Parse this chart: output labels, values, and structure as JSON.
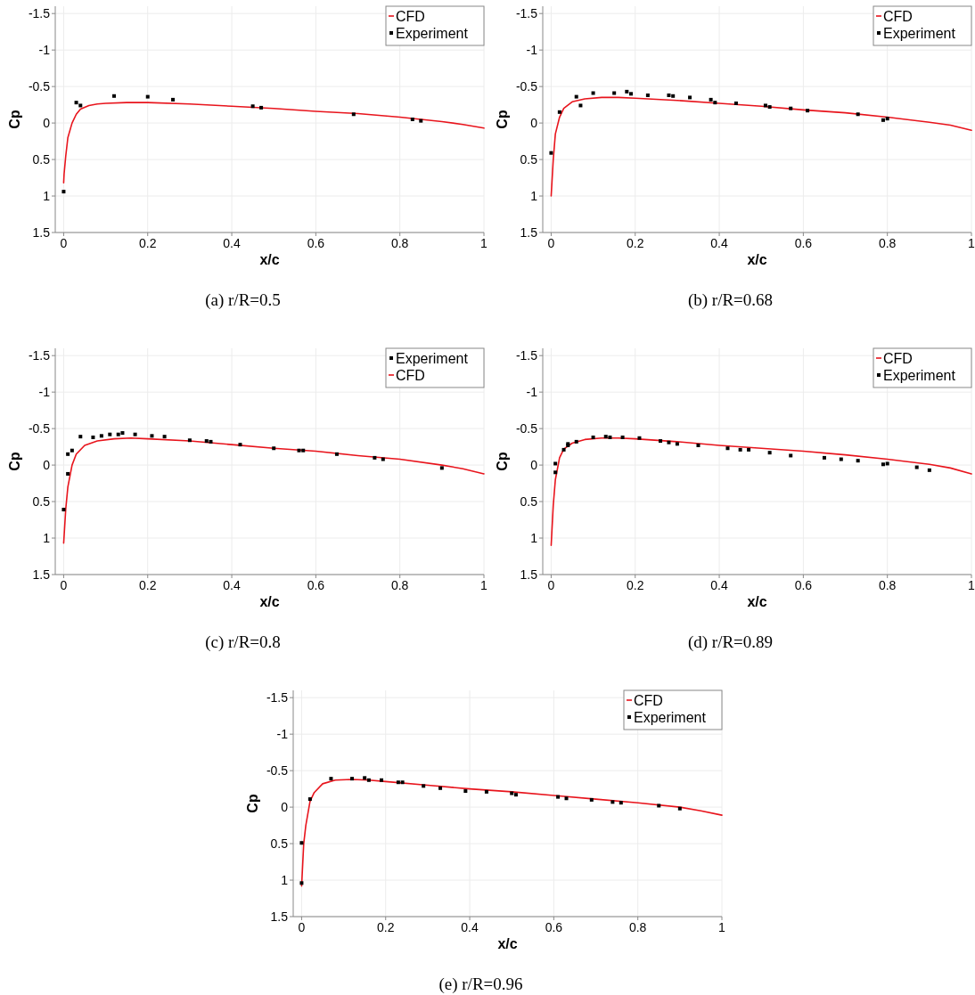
{
  "chart_data": [
    {
      "type": "line",
      "title": "(a) r/R=0.5",
      "xlabel": "x/c",
      "ylabel": "Cp",
      "xlim": [
        -0.02,
        1
      ],
      "ylim": [
        1.5,
        -1.6
      ],
      "xticks": [
        0,
        0.2,
        0.4,
        0.6,
        0.8,
        1
      ],
      "yticks": [
        -1.5,
        -1,
        -0.5,
        0,
        0.5,
        1,
        1.5
      ],
      "grid": true,
      "legend": "top right",
      "series": [
        {
          "name": "CFD",
          "color": "#e8141c",
          "marker": "none",
          "line_style": "solid",
          "x": [
            0,
            0.001,
            0.005,
            0.01,
            0.02,
            0.03,
            0.04,
            0.06,
            0.08,
            0.1,
            0.15,
            0.2,
            0.3,
            0.4,
            0.5,
            0.6,
            0.7,
            0.8,
            0.9,
            0.95,
            1
          ],
          "values": [
            0.82,
            0.7,
            0.45,
            0.2,
            0,
            -0.12,
            -0.19,
            -0.24,
            -0.26,
            -0.27,
            -0.28,
            -0.28,
            -0.26,
            -0.23,
            -0.2,
            -0.16,
            -0.13,
            -0.08,
            -0.02,
            0.02,
            0.07
          ]
        },
        {
          "name": "Experiment",
          "type": "scatter",
          "color": "#000000",
          "marker": "square",
          "x": [
            0,
            0.03,
            0.04,
            0.12,
            0.2,
            0.26,
            0.45,
            0.47,
            0.69,
            0.83,
            0.85
          ],
          "values": [
            0.94,
            -0.28,
            -0.24,
            -0.37,
            -0.36,
            -0.32,
            -0.23,
            -0.21,
            -0.12,
            -0.05,
            -0.03
          ]
        }
      ]
    },
    {
      "type": "line",
      "title": "(b) r/R=0.68",
      "xlabel": "x/c",
      "ylabel": "Cp",
      "xlim": [
        -0.02,
        1
      ],
      "ylim": [
        1.5,
        -1.6
      ],
      "xticks": [
        0,
        0.2,
        0.4,
        0.6,
        0.8,
        1
      ],
      "yticks": [
        -1.5,
        -1,
        -0.5,
        0,
        0.5,
        1,
        1.5
      ],
      "grid": true,
      "legend": "top right",
      "series": [
        {
          "name": "CFD",
          "color": "#e8141c",
          "marker": "none",
          "line_style": "solid",
          "x": [
            0,
            0.005,
            0.01,
            0.02,
            0.03,
            0.05,
            0.08,
            0.12,
            0.16,
            0.2,
            0.3,
            0.4,
            0.5,
            0.6,
            0.7,
            0.8,
            0.9,
            0.95,
            1
          ],
          "values": [
            1.0,
            0.5,
            0.15,
            -0.08,
            -0.2,
            -0.29,
            -0.33,
            -0.35,
            -0.35,
            -0.34,
            -0.31,
            -0.27,
            -0.23,
            -0.18,
            -0.14,
            -0.08,
            -0.01,
            0.03,
            0.1
          ]
        },
        {
          "name": "Experiment",
          "type": "scatter",
          "color": "#000000",
          "marker": "square",
          "x": [
            0,
            0.02,
            0.06,
            0.07,
            0.1,
            0.15,
            0.18,
            0.19,
            0.23,
            0.28,
            0.29,
            0.33,
            0.38,
            0.39,
            0.44,
            0.51,
            0.52,
            0.57,
            0.61,
            0.73,
            0.79,
            0.8
          ],
          "values": [
            0.41,
            -0.15,
            -0.36,
            -0.24,
            -0.41,
            -0.41,
            -0.43,
            -0.4,
            -0.38,
            -0.38,
            -0.37,
            -0.35,
            -0.32,
            -0.28,
            -0.27,
            -0.24,
            -0.22,
            -0.2,
            -0.17,
            -0.12,
            -0.04,
            -0.06
          ]
        }
      ]
    },
    {
      "type": "line",
      "title": "(c) r/R=0.8",
      "xlabel": "x/c",
      "ylabel": "Cp",
      "xlim": [
        -0.02,
        1
      ],
      "ylim": [
        1.5,
        -1.6
      ],
      "xticks": [
        0,
        0.2,
        0.4,
        0.6,
        0.8,
        1
      ],
      "yticks": [
        -1.5,
        -1,
        -0.5,
        0,
        0.5,
        1,
        1.5
      ],
      "grid": true,
      "legend": "top right",
      "series": [
        {
          "name": "Experiment",
          "type": "scatter",
          "color": "#000000",
          "marker": "square",
          "x": [
            0,
            0.01,
            0.01,
            0.02,
            0.04,
            0.07,
            0.09,
            0.11,
            0.13,
            0.14,
            0.17,
            0.21,
            0.24,
            0.3,
            0.34,
            0.35,
            0.42,
            0.5,
            0.56,
            0.57,
            0.65,
            0.74,
            0.76,
            0.9
          ],
          "values": [
            0.61,
            0.12,
            -0.15,
            -0.2,
            -0.39,
            -0.38,
            -0.4,
            -0.42,
            -0.42,
            -0.44,
            -0.42,
            -0.4,
            -0.39,
            -0.34,
            -0.33,
            -0.32,
            -0.28,
            -0.23,
            -0.2,
            -0.2,
            -0.15,
            -0.1,
            -0.08,
            0.04
          ]
        },
        {
          "name": "CFD",
          "color": "#e8141c",
          "marker": "none",
          "line_style": "solid",
          "x": [
            0,
            0.005,
            0.01,
            0.02,
            0.03,
            0.05,
            0.08,
            0.12,
            0.16,
            0.2,
            0.3,
            0.4,
            0.5,
            0.6,
            0.7,
            0.8,
            0.9,
            0.95,
            1
          ],
          "values": [
            1.07,
            0.6,
            0.3,
            0,
            -0.15,
            -0.27,
            -0.33,
            -0.36,
            -0.37,
            -0.36,
            -0.33,
            -0.28,
            -0.23,
            -0.19,
            -0.13,
            -0.08,
            0,
            0.05,
            0.12
          ]
        }
      ]
    },
    {
      "type": "line",
      "title": "(d) r/R=0.89",
      "xlabel": "x/c",
      "ylabel": "Cp",
      "xlim": [
        -0.02,
        1
      ],
      "ylim": [
        1.5,
        -1.6
      ],
      "xticks": [
        0,
        0.2,
        0.4,
        0.6,
        0.8,
        1
      ],
      "yticks": [
        -1.5,
        -1,
        -0.5,
        0,
        0.5,
        1,
        1.5
      ],
      "grid": true,
      "legend": "top right",
      "series": [
        {
          "name": "CFD",
          "color": "#e8141c",
          "marker": "none",
          "line_style": "solid",
          "x": [
            0,
            0.005,
            0.01,
            0.02,
            0.03,
            0.05,
            0.08,
            0.12,
            0.16,
            0.2,
            0.3,
            0.4,
            0.5,
            0.6,
            0.7,
            0.8,
            0.9,
            0.95,
            1
          ],
          "values": [
            1.1,
            0.55,
            0.2,
            -0.1,
            -0.22,
            -0.3,
            -0.35,
            -0.37,
            -0.37,
            -0.36,
            -0.32,
            -0.27,
            -0.23,
            -0.19,
            -0.14,
            -0.08,
            -0.01,
            0.04,
            0.12
          ]
        },
        {
          "name": "Experiment",
          "type": "scatter",
          "color": "#000000",
          "marker": "square",
          "x": [
            0.01,
            0.01,
            0.03,
            0.04,
            0.04,
            0.06,
            0.1,
            0.13,
            0.14,
            0.17,
            0.21,
            0.26,
            0.28,
            0.3,
            0.35,
            0.42,
            0.45,
            0.47,
            0.52,
            0.57,
            0.65,
            0.69,
            0.73,
            0.79,
            0.8,
            0.87,
            0.9
          ],
          "values": [
            -0.02,
            0.1,
            -0.21,
            -0.27,
            -0.29,
            -0.32,
            -0.38,
            -0.39,
            -0.38,
            -0.38,
            -0.37,
            -0.33,
            -0.31,
            -0.29,
            -0.27,
            -0.23,
            -0.21,
            -0.21,
            -0.17,
            -0.13,
            -0.1,
            -0.08,
            -0.06,
            -0.01,
            -0.02,
            0.03,
            0.07
          ]
        }
      ]
    },
    {
      "type": "line",
      "title": "(e) r/R=0.96",
      "xlabel": "x/c",
      "ylabel": "Cp",
      "xlim": [
        -0.02,
        1
      ],
      "ylim": [
        1.5,
        -1.6
      ],
      "xticks": [
        0,
        0.2,
        0.4,
        0.6,
        0.8,
        1
      ],
      "yticks": [
        -1.5,
        -1,
        -0.5,
        0,
        0.5,
        1,
        1.5
      ],
      "grid": true,
      "legend": "top right",
      "series": [
        {
          "name": "CFD",
          "color": "#e8141c",
          "marker": "none",
          "line_style": "solid",
          "x": [
            0,
            0.005,
            0.01,
            0.02,
            0.03,
            0.05,
            0.08,
            0.12,
            0.16,
            0.2,
            0.3,
            0.4,
            0.5,
            0.6,
            0.7,
            0.8,
            0.9,
            0.95,
            1
          ],
          "values": [
            1.08,
            0.5,
            0.25,
            -0.08,
            -0.2,
            -0.32,
            -0.37,
            -0.38,
            -0.37,
            -0.35,
            -0.3,
            -0.25,
            -0.21,
            -0.16,
            -0.11,
            -0.06,
            0,
            0.05,
            0.11
          ]
        },
        {
          "name": "Experiment",
          "type": "scatter",
          "color": "#000000",
          "marker": "square",
          "x": [
            0,
            0,
            0.02,
            0.07,
            0.12,
            0.15,
            0.16,
            0.19,
            0.23,
            0.24,
            0.29,
            0.33,
            0.39,
            0.44,
            0.5,
            0.51,
            0.61,
            0.63,
            0.69,
            0.74,
            0.76,
            0.85,
            0.9
          ],
          "values": [
            1.04,
            0.49,
            -0.11,
            -0.39,
            -0.39,
            -0.4,
            -0.37,
            -0.37,
            -0.34,
            -0.34,
            -0.29,
            -0.26,
            -0.22,
            -0.21,
            -0.19,
            -0.17,
            -0.14,
            -0.12,
            -0.1,
            -0.07,
            -0.06,
            -0.02,
            0.02
          ]
        }
      ]
    }
  ]
}
